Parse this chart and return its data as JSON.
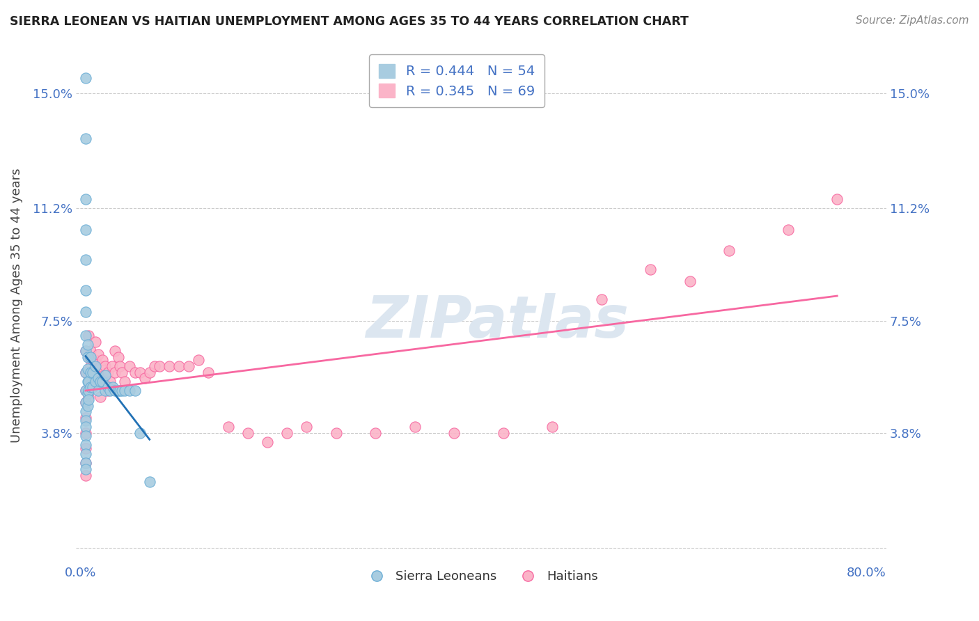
{
  "title": "SIERRA LEONEAN VS HAITIAN UNEMPLOYMENT AMONG AGES 35 TO 44 YEARS CORRELATION CHART",
  "source": "Source: ZipAtlas.com",
  "ylabel": "Unemployment Among Ages 35 to 44 years",
  "xlim": [
    -0.005,
    0.82
  ],
  "ylim": [
    -0.005,
    0.165
  ],
  "yticks": [
    0.0,
    0.038,
    0.075,
    0.112,
    0.15
  ],
  "ytick_labels": [
    "",
    "3.8%",
    "7.5%",
    "11.2%",
    "15.0%"
  ],
  "xticks": [
    0.0,
    0.8
  ],
  "xtick_labels": [
    "0.0%",
    "80.0%"
  ],
  "sierra_R": 0.444,
  "sierra_N": 54,
  "haitian_R": 0.345,
  "haitian_N": 69,
  "sierra_color": "#a8cce0",
  "sierra_edge_color": "#6baed6",
  "haitian_color": "#fbb4c8",
  "haitian_edge_color": "#f768a1",
  "sierra_trend_color": "#2171b5",
  "haitian_trend_color": "#f768a1",
  "watermark_text": "ZIPatlas",
  "watermark_color": "#dce6f0",
  "sierra_points_x": [
    0.005,
    0.005,
    0.005,
    0.005,
    0.005,
    0.005,
    0.005,
    0.005,
    0.005,
    0.005,
    0.005,
    0.005,
    0.005,
    0.005,
    0.005,
    0.005,
    0.005,
    0.005,
    0.005,
    0.005,
    0.007,
    0.007,
    0.007,
    0.007,
    0.007,
    0.007,
    0.008,
    0.008,
    0.008,
    0.01,
    0.01,
    0.01,
    0.012,
    0.012,
    0.015,
    0.015,
    0.018,
    0.018,
    0.02,
    0.022,
    0.025,
    0.025,
    0.028,
    0.03,
    0.033,
    0.035,
    0.038,
    0.04,
    0.042,
    0.045,
    0.05,
    0.055,
    0.06,
    0.07
  ],
  "sierra_points_y": [
    0.155,
    0.135,
    0.115,
    0.105,
    0.095,
    0.085,
    0.078,
    0.07,
    0.065,
    0.058,
    0.052,
    0.048,
    0.045,
    0.042,
    0.04,
    0.037,
    0.034,
    0.031,
    0.028,
    0.026,
    0.067,
    0.063,
    0.059,
    0.055,
    0.051,
    0.047,
    0.055,
    0.052,
    0.049,
    0.063,
    0.058,
    0.053,
    0.058,
    0.053,
    0.06,
    0.055,
    0.056,
    0.052,
    0.055,
    0.055,
    0.057,
    0.052,
    0.053,
    0.052,
    0.053,
    0.052,
    0.052,
    0.052,
    0.052,
    0.052,
    0.052,
    0.052,
    0.038,
    0.022
  ],
  "haitian_points_x": [
    0.005,
    0.005,
    0.005,
    0.005,
    0.005,
    0.005,
    0.005,
    0.005,
    0.005,
    0.008,
    0.008,
    0.008,
    0.008,
    0.01,
    0.01,
    0.01,
    0.012,
    0.012,
    0.015,
    0.015,
    0.015,
    0.018,
    0.018,
    0.02,
    0.02,
    0.02,
    0.022,
    0.022,
    0.025,
    0.025,
    0.028,
    0.028,
    0.03,
    0.032,
    0.035,
    0.035,
    0.038,
    0.04,
    0.042,
    0.045,
    0.05,
    0.055,
    0.06,
    0.065,
    0.07,
    0.075,
    0.08,
    0.09,
    0.1,
    0.11,
    0.12,
    0.13,
    0.15,
    0.17,
    0.19,
    0.21,
    0.23,
    0.26,
    0.3,
    0.34,
    0.38,
    0.43,
    0.48,
    0.53,
    0.58,
    0.62,
    0.66,
    0.72,
    0.77
  ],
  "haitian_points_y": [
    0.065,
    0.058,
    0.052,
    0.048,
    0.043,
    0.038,
    0.033,
    0.028,
    0.024,
    0.07,
    0.063,
    0.057,
    0.05,
    0.065,
    0.06,
    0.054,
    0.062,
    0.056,
    0.068,
    0.062,
    0.055,
    0.064,
    0.058,
    0.06,
    0.055,
    0.05,
    0.062,
    0.056,
    0.06,
    0.054,
    0.058,
    0.052,
    0.055,
    0.06,
    0.065,
    0.058,
    0.063,
    0.06,
    0.058,
    0.055,
    0.06,
    0.058,
    0.058,
    0.056,
    0.058,
    0.06,
    0.06,
    0.06,
    0.06,
    0.06,
    0.062,
    0.058,
    0.04,
    0.038,
    0.035,
    0.038,
    0.04,
    0.038,
    0.038,
    0.04,
    0.038,
    0.038,
    0.04,
    0.082,
    0.092,
    0.088,
    0.098,
    0.105,
    0.115
  ]
}
